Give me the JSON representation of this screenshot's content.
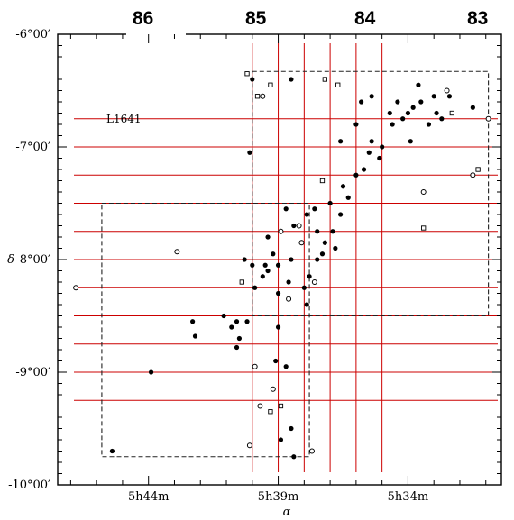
{
  "chart_data": {
    "type": "scatter",
    "region_label": "L1641",
    "xlabel": "α",
    "ylabel": "δ",
    "strip_labels": [
      "86",
      "85",
      "84",
      "83"
    ],
    "x_axis": {
      "unit": "RA minutes offset from 5h00m",
      "range": [
        47.5,
        30.4
      ],
      "ticks": [
        {
          "value": 44,
          "label": "5h44m"
        },
        {
          "value": 39,
          "label": "5h39m"
        },
        {
          "value": 34,
          "label": "5h34m"
        }
      ]
    },
    "y_axis": {
      "unit": "Dec (degrees)",
      "range": [
        -10.0,
        -6.0
      ],
      "ticks": [
        {
          "value": -6.0,
          "label": "-6°00′"
        },
        {
          "value": -7.0,
          "label": "-7°00′"
        },
        {
          "value": -8.0,
          "label": "-8°00′"
        },
        {
          "value": -9.0,
          "label": "-9°00′"
        },
        {
          "value": -10.0,
          "label": "-10°00′"
        }
      ]
    },
    "grid_overlay": {
      "color": "#cc0000",
      "horizontal_dec": [
        -6.75,
        -7.0,
        -7.25,
        -7.5,
        -7.75,
        -8.0,
        -8.25,
        -8.5,
        -8.75,
        -9.0,
        -9.25
      ],
      "vertical_ra": [
        40.0,
        39.0,
        38.0,
        37.0,
        36.0,
        35.0
      ]
    },
    "outlines": [
      {
        "name": "northern-field",
        "ra": [
          40.0,
          30.9
        ],
        "dec": [
          -6.33,
          -8.5
        ]
      },
      {
        "name": "southern-field",
        "ra": [
          45.8,
          37.8
        ],
        "dec": [
          -7.5,
          -9.75
        ]
      }
    ],
    "series": [
      {
        "marker": "filled-circle",
        "points": [
          [
            40.3,
            -8.0
          ],
          [
            40.0,
            -8.05
          ],
          [
            39.5,
            -8.05
          ],
          [
            39.0,
            -8.05
          ],
          [
            38.5,
            -8.0
          ],
          [
            40.6,
            -8.55
          ],
          [
            40.2,
            -8.55
          ],
          [
            41.1,
            -8.5
          ],
          [
            40.8,
            -8.6
          ],
          [
            40.5,
            -8.7
          ],
          [
            40.6,
            -8.78
          ],
          [
            42.3,
            -8.55
          ],
          [
            42.2,
            -8.68
          ],
          [
            43.9,
            -9.0
          ],
          [
            45.4,
            -9.7
          ],
          [
            39.4,
            -8.1
          ],
          [
            38.6,
            -8.2
          ],
          [
            39.0,
            -8.3
          ],
          [
            37.8,
            -8.15
          ],
          [
            38.0,
            -8.25
          ],
          [
            37.9,
            -8.4
          ],
          [
            37.5,
            -8.0
          ],
          [
            37.2,
            -7.85
          ],
          [
            37.5,
            -7.75
          ],
          [
            37.6,
            -7.55
          ],
          [
            37.0,
            -7.5
          ],
          [
            36.5,
            -7.35
          ],
          [
            36.0,
            -7.25
          ],
          [
            35.5,
            -7.05
          ],
          [
            35.0,
            -7.0
          ],
          [
            34.6,
            -6.8
          ],
          [
            34.0,
            -6.7
          ],
          [
            33.5,
            -6.6
          ],
          [
            33.0,
            -6.55
          ],
          [
            32.5,
            -6.5
          ],
          [
            31.5,
            -6.65
          ],
          [
            35.4,
            -6.95
          ],
          [
            35.7,
            -7.2
          ],
          [
            36.3,
            -7.45
          ],
          [
            36.6,
            -7.6
          ],
          [
            36.9,
            -7.75
          ],
          [
            37.3,
            -7.95
          ],
          [
            37.9,
            -7.6
          ],
          [
            38.4,
            -7.7
          ],
          [
            38.7,
            -7.55
          ],
          [
            39.4,
            -7.8
          ],
          [
            39.2,
            -7.95
          ],
          [
            39.0,
            -8.6
          ],
          [
            39.1,
            -8.9
          ],
          [
            38.7,
            -8.95
          ],
          [
            38.5,
            -9.5
          ],
          [
            38.4,
            -9.75
          ],
          [
            38.9,
            -9.6
          ],
          [
            40.1,
            -7.05
          ],
          [
            40.0,
            -6.4
          ],
          [
            38.5,
            -6.4
          ],
          [
            36.6,
            -6.95
          ],
          [
            36.0,
            -6.8
          ],
          [
            34.7,
            -6.7
          ],
          [
            33.8,
            -6.65
          ],
          [
            33.2,
            -6.8
          ],
          [
            32.7,
            -6.75
          ],
          [
            34.4,
            -6.6
          ],
          [
            33.9,
            -6.95
          ],
          [
            35.1,
            -7.1
          ],
          [
            39.6,
            -8.15
          ],
          [
            39.9,
            -8.25
          ],
          [
            36.8,
            -7.9
          ],
          [
            35.8,
            -6.6
          ],
          [
            32.9,
            -6.7
          ],
          [
            33.6,
            -6.45
          ],
          [
            32.4,
            -6.55
          ],
          [
            34.2,
            -6.75
          ],
          [
            35.4,
            -6.55
          ]
        ]
      },
      {
        "marker": "open-circle",
        "points": [
          [
            46.8,
            -8.25
          ],
          [
            42.9,
            -7.93
          ],
          [
            38.1,
            -7.85
          ],
          [
            38.6,
            -8.35
          ],
          [
            39.9,
            -8.95
          ],
          [
            39.7,
            -9.3
          ],
          [
            37.6,
            -8.2
          ],
          [
            38.2,
            -7.7
          ],
          [
            40.1,
            -9.65
          ],
          [
            37.7,
            -9.7
          ],
          [
            39.6,
            -6.55
          ],
          [
            33.4,
            -7.4
          ],
          [
            31.5,
            -7.25
          ],
          [
            30.9,
            -6.75
          ],
          [
            32.5,
            -6.5
          ],
          [
            39.2,
            -9.15
          ],
          [
            38.9,
            -7.75
          ]
        ]
      },
      {
        "marker": "open-square",
        "points": [
          [
            40.2,
            -6.35
          ],
          [
            39.8,
            -6.55
          ],
          [
            39.3,
            -6.45
          ],
          [
            37.3,
            -7.3
          ],
          [
            39.3,
            -9.35
          ],
          [
            38.9,
            -9.3
          ],
          [
            32.3,
            -6.7
          ],
          [
            31.3,
            -7.2
          ],
          [
            40.4,
            -8.2
          ],
          [
            36.7,
            -6.45
          ],
          [
            33.4,
            -7.72
          ],
          [
            37.2,
            -6.4
          ]
        ]
      }
    ]
  }
}
